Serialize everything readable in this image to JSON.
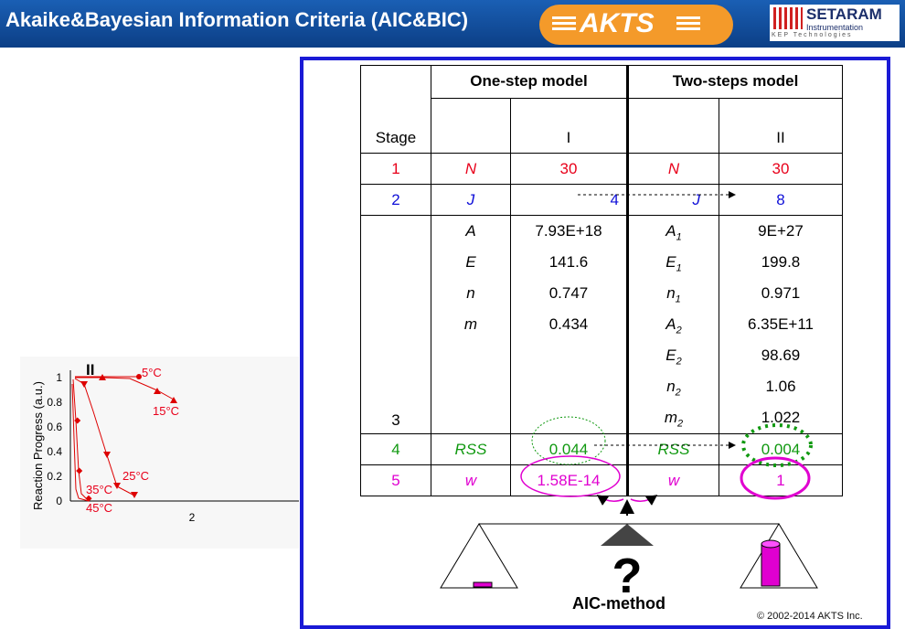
{
  "header": {
    "title": "Akaike&Bayesian Information Criteria (AIC&BIC)",
    "logo": "AKTS",
    "partner_name": "SETARAM",
    "partner_sub": "Instrumentation",
    "partner_tagline": "KEP Technologies"
  },
  "mini_chart": {
    "ylabel": "Reaction Progress (a.u.)",
    "y_ticks": [
      "1",
      "0.8",
      "0.6",
      "0.4",
      "0.2",
      "0"
    ],
    "x_tick": "2",
    "model_label": "II",
    "temps": [
      "5°C",
      "15°C",
      "25°C",
      "35°C",
      "45°C"
    ]
  },
  "table": {
    "one_step": "One-step model",
    "two_step": "Two-steps model",
    "stage": "Stage",
    "model_one": "I",
    "model_two": "II",
    "rows": {
      "n_stage": "1",
      "n_sym": "N",
      "n_one": "30",
      "n_two_sym": "N",
      "n_two": "30",
      "j_stage": "2",
      "j_sym": "J",
      "j_one": "4",
      "j_two_sym": "J",
      "j_two": "8",
      "p_stage": "3",
      "rss_stage": "4",
      "rss_sym": "RSS",
      "rss_one": "0.044",
      "rss_two_sym": "RSS",
      "rss_two": "0.004",
      "w_stage": "5",
      "w_sym": "w",
      "w_one": "1.58E-14",
      "w_two_sym": "w",
      "w_two": "1"
    },
    "params_one_sym": [
      "A",
      "E",
      "n",
      "m"
    ],
    "params_one_val": [
      "7.93E+18",
      "141.6",
      "0.747",
      "0.434"
    ],
    "params_two_sym": [
      {
        "b": "A",
        "s": "1"
      },
      {
        "b": "E",
        "s": "1"
      },
      {
        "b": "n",
        "s": "1"
      },
      {
        "b": "A",
        "s": "2"
      },
      {
        "b": "E",
        "s": "2"
      },
      {
        "b": "n",
        "s": "2"
      },
      {
        "b": "m",
        "s": "2"
      }
    ],
    "params_two_val": [
      "9E+27",
      "199.8",
      "0.971",
      "6.35E+11",
      "98.69",
      "1.06",
      "1.022"
    ]
  },
  "balance_question": "?",
  "aic_label": "AIC-method",
  "copyright": "© 2002-2014 AKTS Inc.",
  "colors": {
    "title_bar": "#0c3f86",
    "akts_orange": "#f49a2a",
    "panel_border": "#1a1ad6",
    "red": "#e8001a",
    "blue": "#1010d8",
    "green": "#119911",
    "magenta": "#e000d0"
  }
}
